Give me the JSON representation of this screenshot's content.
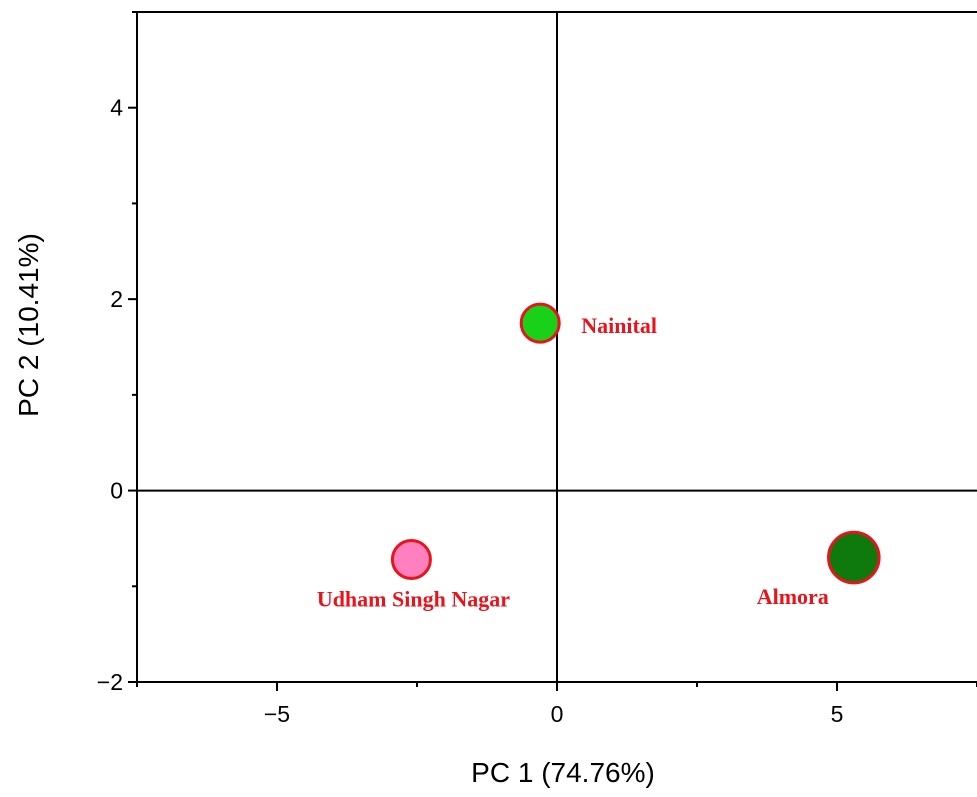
{
  "chart_data": {
    "type": "scatter",
    "xlabel": "PC 1 (74.76%)",
    "ylabel": "PC 2 (10.41%)",
    "xlim": [
      -7.5,
      7.5
    ],
    "ylim": [
      -2,
      5
    ],
    "x_ticks": [
      -5,
      0,
      5
    ],
    "y_ticks": [
      -2,
      0,
      2,
      4
    ],
    "x_tick_labels": [
      "−5",
      "0",
      "5"
    ],
    "y_tick_labels": [
      "−2",
      "0",
      "2",
      "4"
    ],
    "reference_lines": {
      "x": 0,
      "y": 0
    },
    "grid": false,
    "legend": "none",
    "label_color": "#e8141b",
    "marker_edge_color": "#e8141b",
    "points": [
      {
        "label": "Nainital",
        "x": -0.3,
        "y": 1.75,
        "color": "#19d119",
        "relative_size": 1.0,
        "label_side": "right"
      },
      {
        "label": "Udham Singh Nagar",
        "x": -2.6,
        "y": -0.72,
        "color": "#ff7fbf",
        "relative_size": 1.0,
        "label_side": "below"
      },
      {
        "label": "Almora",
        "x": 5.3,
        "y": -0.7,
        "color": "#0e7a0e",
        "relative_size": 1.33,
        "label_side": "below-left"
      }
    ]
  }
}
